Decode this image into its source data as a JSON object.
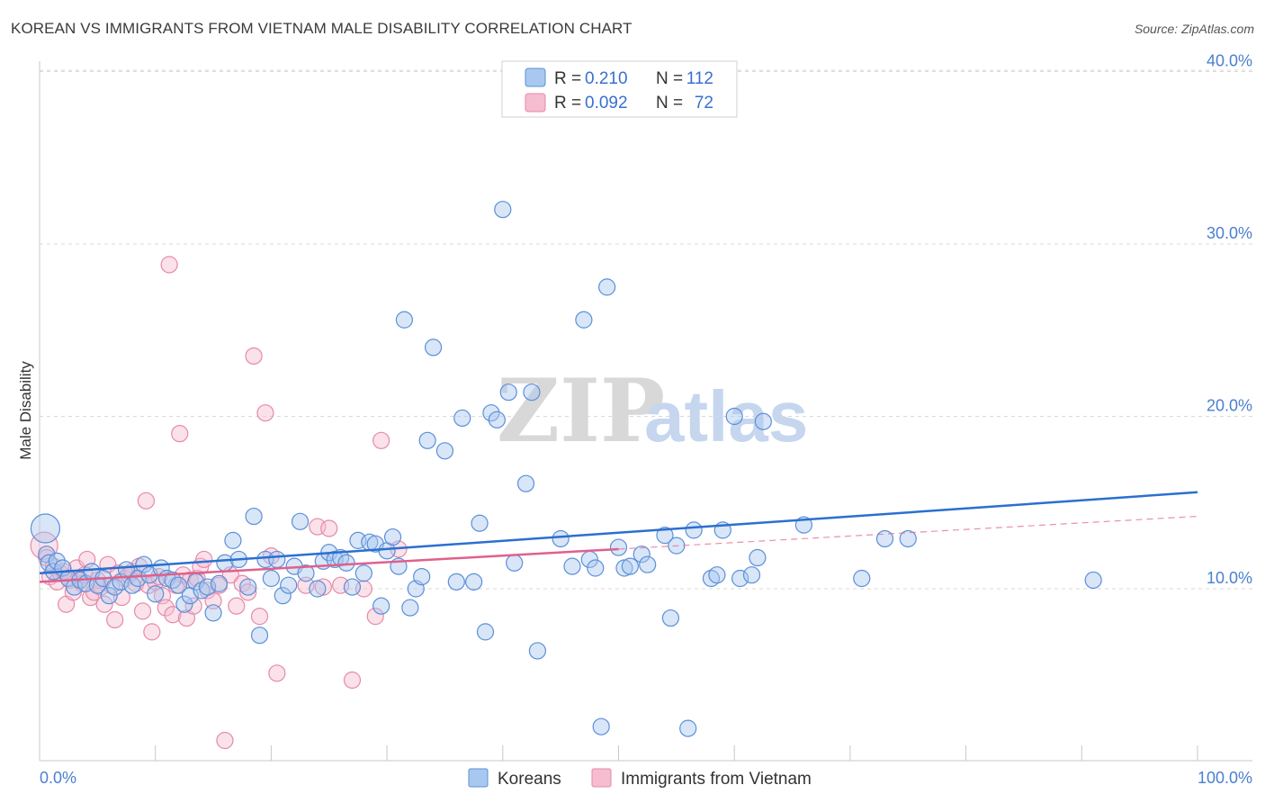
{
  "header": {
    "title": "KOREAN VS IMMIGRANTS FROM VIETNAM MALE DISABILITY CORRELATION CHART",
    "source": "Source: ZipAtlas.com"
  },
  "watermark": {
    "zip": "ZIP",
    "atlas": "atlas"
  },
  "legend": {
    "entries": [
      {
        "r_label": "R =",
        "r_value": "0.210",
        "n_label": "N =",
        "n_value": "112"
      },
      {
        "r_label": "R =",
        "r_value": "0.092",
        "n_label": "N =",
        "n_value": "72"
      }
    ]
  },
  "bottom_legend": [
    "Koreans",
    "Immigrants from Vietnam"
  ],
  "colors": {
    "series_a_fill": "#a9c8f0",
    "series_a_stroke": "#5b8fd8",
    "series_a_line": "#2b6fd0",
    "series_b_fill": "#f6bcd0",
    "series_b_stroke": "#e58aaa",
    "series_b_line": "#e0608c",
    "grid": "#d8d8d8",
    "axis_text": "#4a7fd0"
  },
  "chart_data": {
    "type": "scatter",
    "title": "KOREAN VS IMMIGRANTS FROM VIETNAM MALE DISABILITY CORRELATION CHART",
    "xlabel": "",
    "ylabel": "Male Disability",
    "xlim": [
      0,
      100
    ],
    "ylim": [
      0,
      42
    ],
    "x_tick_labels": [
      "0.0%",
      "100.0%"
    ],
    "y_ticks": [
      10,
      20,
      30,
      40
    ],
    "y_tick_labels": [
      "10.0%",
      "20.0%",
      "30.0%",
      "40.0%"
    ],
    "series": [
      {
        "name": "Koreans",
        "r": 0.21,
        "n": 112,
        "trend": {
          "x": [
            0,
            100
          ],
          "y": [
            10.9,
            15.6
          ]
        },
        "points": [
          [
            0.5,
            13.5
          ],
          [
            0.6,
            12.0
          ],
          [
            0.8,
            11.5
          ],
          [
            1.2,
            11.0
          ],
          [
            1.5,
            11.6
          ],
          [
            2.0,
            11.2
          ],
          [
            2.5,
            10.6
          ],
          [
            3.0,
            10.1
          ],
          [
            3.5,
            10.5
          ],
          [
            4.0,
            10.3
          ],
          [
            4.5,
            11.0
          ],
          [
            5.0,
            10.2
          ],
          [
            5.5,
            10.6
          ],
          [
            6.0,
            9.6
          ],
          [
            6.5,
            10.1
          ],
          [
            7.0,
            10.4
          ],
          [
            7.5,
            11.1
          ],
          [
            8.0,
            10.2
          ],
          [
            8.5,
            10.6
          ],
          [
            9.0,
            11.4
          ],
          [
            9.5,
            10.8
          ],
          [
            10.0,
            9.7
          ],
          [
            10.5,
            11.2
          ],
          [
            11.0,
            10.6
          ],
          [
            11.5,
            10.5
          ],
          [
            12.0,
            10.2
          ],
          [
            12.5,
            9.1
          ],
          [
            13.0,
            9.6
          ],
          [
            13.5,
            10.4
          ],
          [
            14.0,
            9.9
          ],
          [
            14.5,
            10.1
          ],
          [
            15.0,
            8.6
          ],
          [
            15.5,
            10.3
          ],
          [
            16.0,
            11.5
          ],
          [
            16.7,
            12.8
          ],
          [
            17.2,
            11.7
          ],
          [
            18.0,
            10.1
          ],
          [
            18.5,
            14.2
          ],
          [
            19.0,
            7.3
          ],
          [
            19.5,
            11.7
          ],
          [
            20.0,
            10.6
          ],
          [
            20.5,
            11.7
          ],
          [
            21.0,
            9.6
          ],
          [
            21.5,
            10.2
          ],
          [
            22.0,
            11.3
          ],
          [
            22.5,
            13.9
          ],
          [
            23.0,
            10.9
          ],
          [
            24.0,
            10.0
          ],
          [
            24.5,
            11.6
          ],
          [
            25.0,
            12.1
          ],
          [
            25.5,
            11.7
          ],
          [
            26.0,
            11.8
          ],
          [
            26.5,
            11.5
          ],
          [
            27.0,
            10.1
          ],
          [
            27.5,
            12.8
          ],
          [
            28.0,
            10.9
          ],
          [
            28.5,
            12.7
          ],
          [
            29.0,
            12.6
          ],
          [
            29.5,
            9.0
          ],
          [
            30.0,
            12.2
          ],
          [
            30.5,
            13.0
          ],
          [
            31.0,
            11.3
          ],
          [
            31.5,
            25.6
          ],
          [
            32.0,
            8.9
          ],
          [
            32.5,
            10.0
          ],
          [
            33.0,
            10.7
          ],
          [
            33.5,
            18.6
          ],
          [
            34.0,
            24.0
          ],
          [
            35.0,
            18.0
          ],
          [
            36.0,
            10.4
          ],
          [
            36.5,
            19.9
          ],
          [
            37.5,
            10.4
          ],
          [
            38.0,
            13.8
          ],
          [
            38.5,
            7.5
          ],
          [
            39.0,
            20.2
          ],
          [
            39.5,
            19.8
          ],
          [
            40.0,
            32.0
          ],
          [
            40.5,
            21.4
          ],
          [
            41.0,
            11.5
          ],
          [
            42.0,
            16.1
          ],
          [
            42.5,
            21.4
          ],
          [
            43.0,
            6.4
          ],
          [
            45.0,
            12.9
          ],
          [
            46.0,
            11.3
          ],
          [
            47.0,
            25.6
          ],
          [
            47.5,
            11.7
          ],
          [
            48.0,
            11.2
          ],
          [
            48.5,
            2.0
          ],
          [
            49.0,
            27.5
          ],
          [
            50.0,
            12.4
          ],
          [
            50.5,
            11.2
          ],
          [
            51.0,
            11.3
          ],
          [
            52.0,
            12.0
          ],
          [
            52.5,
            11.4
          ],
          [
            54.0,
            13.1
          ],
          [
            54.5,
            8.3
          ],
          [
            55.0,
            12.5
          ],
          [
            56.0,
            1.9
          ],
          [
            56.5,
            13.4
          ],
          [
            58.0,
            10.6
          ],
          [
            58.5,
            10.8
          ],
          [
            59.0,
            13.4
          ],
          [
            60.0,
            20.0
          ],
          [
            60.5,
            10.6
          ],
          [
            61.5,
            10.8
          ],
          [
            62.0,
            11.8
          ],
          [
            62.5,
            19.7
          ],
          [
            66.0,
            13.7
          ],
          [
            71.0,
            10.6
          ],
          [
            73.0,
            12.9
          ],
          [
            75.0,
            12.9
          ],
          [
            91.0,
            10.5
          ]
        ]
      },
      {
        "name": "Immigrants from Vietnam",
        "r": 0.092,
        "n": 72,
        "trend": {
          "x": [
            0,
            50
          ],
          "y": [
            10.4,
            12.3
          ]
        },
        "trend_dashed": {
          "x": [
            50,
            100
          ],
          "y": [
            12.3,
            14.2
          ]
        },
        "points": [
          [
            0.4,
            12.5
          ],
          [
            0.6,
            11.8
          ],
          [
            0.9,
            10.7
          ],
          [
            1.2,
            11.3
          ],
          [
            1.5,
            10.4
          ],
          [
            1.8,
            10.9
          ],
          [
            2.1,
            11.0
          ],
          [
            2.3,
            9.1
          ],
          [
            2.6,
            10.5
          ],
          [
            2.9,
            9.8
          ],
          [
            3.2,
            11.2
          ],
          [
            3.4,
            10.6
          ],
          [
            3.7,
            10.3
          ],
          [
            3.9,
            10.8
          ],
          [
            4.1,
            11.7
          ],
          [
            4.4,
            9.5
          ],
          [
            4.7,
            9.8
          ],
          [
            5.0,
            10.5
          ],
          [
            5.3,
            10.1
          ],
          [
            5.6,
            9.1
          ],
          [
            5.9,
            11.4
          ],
          [
            6.2,
            10.2
          ],
          [
            6.5,
            8.2
          ],
          [
            6.8,
            10.9
          ],
          [
            7.1,
            9.5
          ],
          [
            7.4,
            10.6
          ],
          [
            7.7,
            10.8
          ],
          [
            8.0,
            11.0
          ],
          [
            8.3,
            10.3
          ],
          [
            8.6,
            11.3
          ],
          [
            8.9,
            8.7
          ],
          [
            9.2,
            15.1
          ],
          [
            9.4,
            10.2
          ],
          [
            9.7,
            7.5
          ],
          [
            10.0,
            10.4
          ],
          [
            10.3,
            10.7
          ],
          [
            10.6,
            9.6
          ],
          [
            10.9,
            8.9
          ],
          [
            11.2,
            28.8
          ],
          [
            11.5,
            8.5
          ],
          [
            11.8,
            10.2
          ],
          [
            12.1,
            19.0
          ],
          [
            12.4,
            10.8
          ],
          [
            12.7,
            8.3
          ],
          [
            13.0,
            10.5
          ],
          [
            13.3,
            9.0
          ],
          [
            13.6,
            10.6
          ],
          [
            13.9,
            11.3
          ],
          [
            14.2,
            11.7
          ],
          [
            14.5,
            9.9
          ],
          [
            15.0,
            9.3
          ],
          [
            15.5,
            10.2
          ],
          [
            16.0,
            1.2
          ],
          [
            16.5,
            10.8
          ],
          [
            17.0,
            9.0
          ],
          [
            17.5,
            10.3
          ],
          [
            18.0,
            9.8
          ],
          [
            18.5,
            23.5
          ],
          [
            19.0,
            8.4
          ],
          [
            19.5,
            20.2
          ],
          [
            20.0,
            11.9
          ],
          [
            20.5,
            5.1
          ],
          [
            23.0,
            10.2
          ],
          [
            24.0,
            13.6
          ],
          [
            24.5,
            10.1
          ],
          [
            25.0,
            13.5
          ],
          [
            26.0,
            10.2
          ],
          [
            27.0,
            4.7
          ],
          [
            28.0,
            10.0
          ],
          [
            29.0,
            8.4
          ],
          [
            29.5,
            18.6
          ],
          [
            31.0,
            12.3
          ]
        ]
      }
    ]
  }
}
